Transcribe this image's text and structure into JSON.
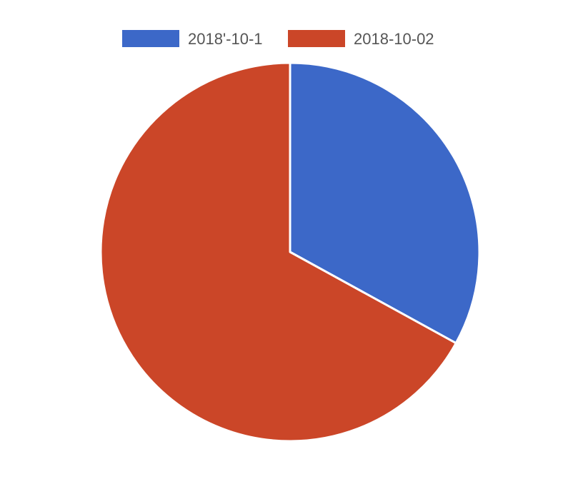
{
  "chart_data": {
    "type": "pie",
    "series": [
      {
        "name": "2018'-10-1",
        "value": 33,
        "color": "#3c68c8"
      },
      {
        "name": "2018-10-02",
        "value": 67,
        "color": "#cb4628"
      }
    ],
    "legend_position": "top",
    "slice_border_color": "#ffffff"
  }
}
